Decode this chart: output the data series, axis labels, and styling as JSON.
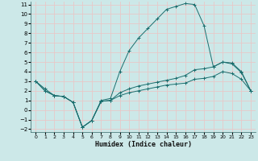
{
  "xlabel": "Humidex (Indice chaleur)",
  "bg_color": "#cce8e8",
  "grid_color": "#e8c8c8",
  "line_color": "#1a6e6e",
  "xlim": [
    0,
    23
  ],
  "ylim": [
    -2,
    11
  ],
  "xticks": [
    0,
    1,
    2,
    3,
    4,
    5,
    6,
    7,
    8,
    9,
    10,
    11,
    12,
    13,
    14,
    15,
    16,
    17,
    18,
    19,
    20,
    21,
    22,
    23
  ],
  "yticks": [
    -2,
    -1,
    0,
    1,
    2,
    3,
    4,
    5,
    6,
    7,
    8,
    9,
    10,
    11
  ],
  "line1_x": [
    0,
    1,
    2,
    3,
    4,
    5,
    6,
    7,
    8,
    9,
    10,
    11,
    12,
    13,
    14,
    15,
    16,
    17,
    18,
    19,
    20,
    21,
    22,
    23
  ],
  "line1_y": [
    3.0,
    2.2,
    1.5,
    1.4,
    0.8,
    -1.8,
    -1.1,
    1.0,
    1.2,
    4.0,
    6.2,
    7.5,
    8.5,
    9.5,
    10.5,
    10.8,
    11.1,
    11.0,
    8.8,
    4.5,
    5.0,
    4.9,
    4.0,
    2.0
  ],
  "line2_x": [
    0,
    1,
    2,
    3,
    4,
    5,
    6,
    7,
    8,
    9,
    10,
    11,
    12,
    13,
    14,
    15,
    16,
    17,
    18,
    19,
    20,
    21,
    22,
    23
  ],
  "line2_y": [
    3.0,
    2.0,
    1.5,
    1.4,
    0.8,
    -1.8,
    -1.1,
    0.9,
    1.0,
    1.8,
    2.2,
    2.5,
    2.7,
    2.9,
    3.1,
    3.3,
    3.6,
    4.2,
    4.3,
    4.5,
    5.0,
    4.8,
    3.9,
    2.0
  ],
  "line3_x": [
    0,
    1,
    2,
    3,
    4,
    5,
    6,
    7,
    8,
    9,
    10,
    11,
    12,
    13,
    14,
    15,
    16,
    17,
    18,
    19,
    20,
    21,
    22,
    23
  ],
  "line3_y": [
    3.0,
    2.0,
    1.5,
    1.4,
    0.8,
    -1.8,
    -1.1,
    0.9,
    1.0,
    1.5,
    1.8,
    2.0,
    2.2,
    2.4,
    2.6,
    2.7,
    2.8,
    3.2,
    3.3,
    3.5,
    4.0,
    3.8,
    3.2,
    2.0
  ]
}
